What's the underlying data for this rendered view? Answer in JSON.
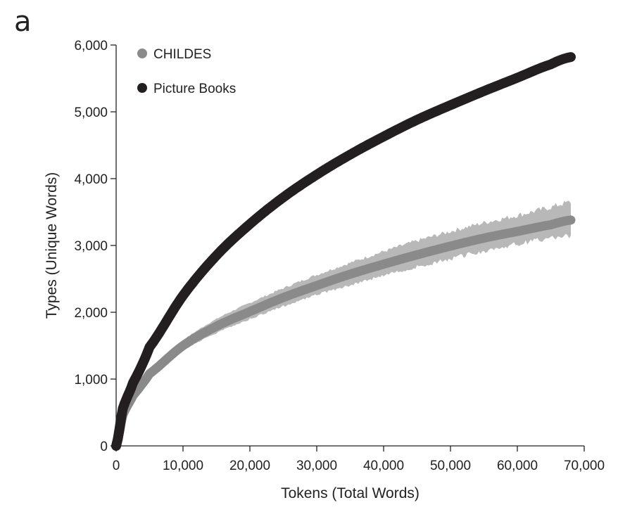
{
  "panel_label": "a",
  "chart_data": {
    "type": "line",
    "title": "",
    "xlabel": "Tokens (Total Words)",
    "ylabel": "Types (Unique Words)",
    "xlim": [
      0,
      70000
    ],
    "ylim": [
      0,
      6000
    ],
    "x_ticks": [
      0,
      10000,
      20000,
      30000,
      40000,
      50000,
      60000,
      70000
    ],
    "x_tick_labels": [
      "0",
      "10,000",
      "20,000",
      "30,000",
      "40,000",
      "50,000",
      "60,000",
      "70,000"
    ],
    "y_ticks": [
      0,
      1000,
      2000,
      3000,
      4000,
      5000,
      6000
    ],
    "y_tick_labels": [
      "0",
      "1,000",
      "2,000",
      "3,000",
      "4,000",
      "5,000",
      "6,000"
    ],
    "grid": false,
    "legend_position": "top-left",
    "series": [
      {
        "name": "CHILDES",
        "color": "#8a8a8a",
        "band_color": "#b8b8b8",
        "x": [
          0,
          1000,
          2500,
          5000,
          10000,
          15000,
          20000,
          25000,
          30000,
          35000,
          40000,
          45000,
          50000,
          55000,
          60000,
          65000,
          68000
        ],
        "values": [
          0,
          460,
          750,
          1080,
          1500,
          1790,
          2010,
          2220,
          2400,
          2570,
          2720,
          2860,
          2990,
          3110,
          3210,
          3310,
          3380
        ],
        "band_lower": [
          0,
          430,
          710,
          1020,
          1420,
          1690,
          1900,
          2090,
          2260,
          2410,
          2550,
          2680,
          2800,
          2920,
          3020,
          3110,
          3140
        ],
        "band_upper": [
          0,
          490,
          790,
          1140,
          1580,
          1900,
          2140,
          2360,
          2560,
          2740,
          2910,
          3070,
          3210,
          3340,
          3450,
          3570,
          3650
        ]
      },
      {
        "name": "Picture Books",
        "color": "#231f20",
        "x": [
          0,
          1000,
          2500,
          5000,
          10000,
          15000,
          20000,
          25000,
          30000,
          35000,
          40000,
          45000,
          50000,
          55000,
          60000,
          65000,
          68000
        ],
        "values": [
          0,
          560,
          940,
          1480,
          2250,
          2850,
          3320,
          3720,
          4060,
          4360,
          4630,
          4880,
          5100,
          5310,
          5510,
          5710,
          5820
        ]
      }
    ]
  }
}
